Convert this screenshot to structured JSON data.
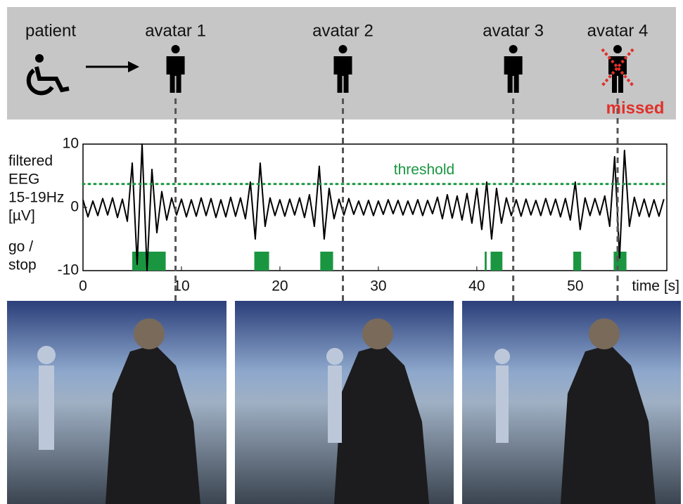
{
  "header": {
    "patient": "patient",
    "avatars": [
      {
        "label": "avatar 1",
        "time": 9.4
      },
      {
        "label": "avatar 2",
        "time": 26.4
      },
      {
        "label": "avatar 3",
        "time": 43.7
      },
      {
        "label": "avatar 4",
        "time": 54.3,
        "status": "missed"
      }
    ]
  },
  "chart_data": {
    "type": "line",
    "y_label_lines": [
      "filtered",
      "EEG",
      "15-19Hz",
      "[µV]"
    ],
    "x_label": "time [s]",
    "xlim": [
      0,
      59.3
    ],
    "ylim": [
      -10,
      10
    ],
    "xticks": [
      0,
      10,
      20,
      30,
      40,
      50
    ],
    "yticks": [
      -10,
      0,
      10
    ],
    "threshold": {
      "label": "threshold",
      "value": 3.7,
      "color": "#1a9641"
    },
    "go_stop": {
      "label_lines": [
        "go /",
        "stop"
      ],
      "level": -7,
      "color": "#1a9641",
      "intervals": [
        [
          5.0,
          8.4
        ],
        [
          17.4,
          18.9
        ],
        [
          24.1,
          25.4
        ],
        [
          40.8,
          41.0
        ],
        [
          41.4,
          42.6
        ],
        [
          49.8,
          50.6
        ],
        [
          53.9,
          55.2
        ]
      ]
    },
    "x": [
      0,
      0.5,
      1,
      1.5,
      2,
      2.5,
      3,
      3.5,
      4,
      4.5,
      5,
      5.5,
      6,
      6.5,
      7,
      7.5,
      8,
      8.5,
      9,
      9.5,
      10,
      10.5,
      11,
      11.5,
      12,
      12.5,
      13,
      13.5,
      14,
      14.5,
      15,
      15.5,
      16,
      16.5,
      17,
      17.5,
      18,
      18.5,
      19,
      19.5,
      20,
      20.5,
      21,
      21.5,
      22,
      22.5,
      23,
      23.5,
      24,
      24.5,
      25,
      25.5,
      26,
      26.5,
      27,
      27.5,
      28,
      28.5,
      29,
      29.5,
      30,
      30.5,
      31,
      31.5,
      32,
      32.5,
      33,
      33.5,
      34,
      34.5,
      35,
      35.5,
      36,
      36.5,
      37,
      37.5,
      38,
      38.5,
      39,
      39.5,
      40,
      40.5,
      41,
      41.5,
      42,
      42.5,
      43,
      43.5,
      44,
      44.5,
      45,
      45.5,
      46,
      46.5,
      47,
      47.5,
      48,
      48.5,
      49,
      49.5,
      50,
      50.5,
      51,
      51.5,
      52,
      52.5,
      53,
      53.5,
      54,
      54.5,
      55,
      55.5,
      56,
      56.5,
      57,
      57.5,
      58,
      58.5,
      59
    ],
    "series": [
      {
        "color": "#000000",
        "values": [
          1.2,
          -1.5,
          1.0,
          -1.3,
          1.4,
          -1.2,
          1.5,
          -1.6,
          1.3,
          -2.2,
          7,
          -9,
          10,
          -10,
          6,
          -4,
          2.5,
          -2,
          1.5,
          -1.2,
          1.3,
          -1.5,
          1.2,
          -1.4,
          1.5,
          -1.3,
          1.4,
          -1.6,
          1.2,
          -1.5,
          1.6,
          -1.4,
          1.5,
          -1.8,
          4,
          -5,
          7,
          -3,
          1.5,
          -1.3,
          1.2,
          -1.4,
          1.3,
          -1.2,
          1.5,
          -1.6,
          2,
          -3,
          6.5,
          -5,
          3,
          -1.8,
          1.3,
          -1.2,
          1.4,
          -1.1,
          1.0,
          -1.2,
          1.1,
          -1.3,
          1.0,
          -1.1,
          1.2,
          -1.0,
          1.1,
          -1.2,
          1.0,
          -1.1,
          1.2,
          -1.3,
          1.1,
          -1.0,
          1.6,
          -1.8,
          2,
          -1.7,
          1.8,
          -2,
          2.2,
          -2.5,
          3,
          -3.5,
          4,
          -5,
          3,
          -2.5,
          1.5,
          -1.3,
          1.2,
          -1.4,
          1.3,
          -1.2,
          1.1,
          -1.3,
          1.4,
          -1.2,
          1.3,
          -1.5,
          1.4,
          -2,
          4,
          -3.5,
          1.5,
          -1.3,
          1.4,
          -1.2,
          1.8,
          -3,
          8,
          -8,
          9,
          -3,
          1.6,
          -1.4,
          1.3,
          -1.5,
          1.2,
          -1.4,
          1.3
        ]
      }
    ]
  }
}
